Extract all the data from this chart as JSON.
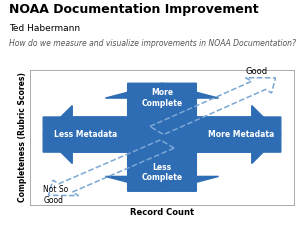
{
  "title": "NOAA Documentation Improvement",
  "subtitle": "Ted Habermann",
  "question": "How do we measure and visualize improvements in NOAA Documentation?",
  "xlabel": "Record Count",
  "ylabel": "Completeness (Rubric Scores)",
  "arrow_color": "#2E6DB4",
  "dashed_arrow_color": "#7BA7D4",
  "background": "#FFFFFF",
  "labels": {
    "more_complete": "More\nComplete",
    "less_complete": "Less\nComplete",
    "less_metadata": "Less Metadata",
    "more_metadata": "More Metadata",
    "good": "Good",
    "not_so_good": "Not So\nGood"
  },
  "fig_title_fontsize": 9,
  "fig_subtitle_fontsize": 6.5,
  "fig_question_fontsize": 5.5,
  "label_fontsize": 5.5,
  "axis_label_fontsize": 6.0
}
